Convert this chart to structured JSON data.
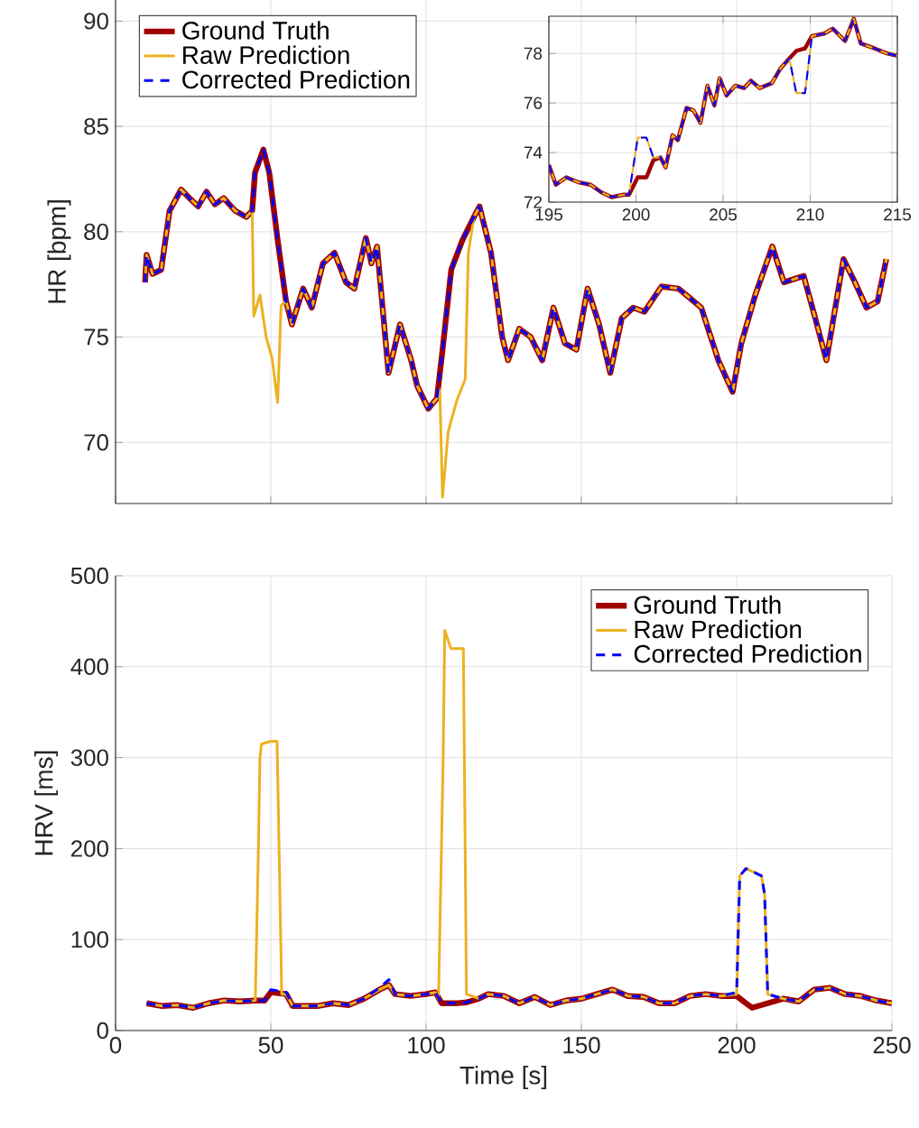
{
  "chart_data": [
    {
      "type": "line",
      "ylabel": "HR [bpm]",
      "xlim": [
        0,
        250
      ],
      "ylim": [
        67.1,
        91
      ],
      "xticks": [
        0,
        50,
        100,
        150,
        200,
        250
      ],
      "yticks": [
        70,
        75,
        80,
        85,
        90
      ],
      "tick_labels": "y",
      "grid": true,
      "legend": "top left",
      "x": [
        9.5,
        10,
        11.9,
        14.7,
        17.4,
        21.1,
        23.8,
        26.6,
        29.3,
        32,
        34.8,
        38.5,
        42.1,
        44,
        44.9,
        47.6,
        49.5,
        52.2,
        54.9,
        56.8,
        60.4,
        63.2,
        66.8,
        70.5,
        74.2,
        76.9,
        80.6,
        82.4,
        84.2,
        87.9,
        91.6,
        95.2,
        97.1,
        100.7,
        103.5,
        105.3,
        108.1,
        111.7,
        115.4,
        117.2,
        120.9,
        124.5,
        126.4,
        130,
        133.7,
        137.4,
        141,
        144.7,
        148.4,
        152,
        155.7,
        159.3,
        163,
        166.7,
        170.3,
        175.8,
        181.3,
        188.6,
        194.1,
        198.7,
        201.5,
        206,
        211.5,
        215.2,
        221.6,
        225.3,
        228.9,
        234.4,
        238.1,
        241.8,
        245.4,
        248.2
      ],
      "series": [
        {
          "name": "Ground Truth",
          "color": "#a00000",
          "line_style": "solid",
          "values": [
            77.6,
            78.9,
            78.0,
            78.2,
            81.0,
            82.0,
            81.6,
            81.2,
            81.9,
            81.3,
            81.6,
            81.0,
            80.7,
            81.0,
            82.8,
            83.9,
            82.8,
            79.6,
            76.7,
            75.6,
            77.3,
            76.4,
            78.5,
            79.0,
            77.6,
            77.3,
            79.7,
            78.5,
            79.3,
            73.3,
            75.6,
            73.9,
            72.7,
            71.6,
            72.1,
            74.4,
            78.2,
            79.6,
            80.7,
            81.2,
            79.0,
            75.0,
            73.9,
            75.4,
            75.0,
            73.9,
            76.4,
            74.7,
            74.4,
            77.3,
            75.6,
            73.3,
            75.9,
            76.4,
            76.2,
            77.4,
            77.3,
            76.4,
            73.9,
            72.4,
            74.7,
            77.0,
            79.3,
            77.6,
            77.9,
            75.9,
            73.9,
            78.7,
            77.6,
            76.4,
            76.7,
            78.7
          ]
        },
        {
          "name": "Raw Prediction",
          "color": "#edb120",
          "line_style": "solid",
          "x": [
            9.5,
            10,
            11.9,
            14.7,
            17.4,
            21.1,
            23.8,
            26.6,
            29.3,
            32,
            34.8,
            38.5,
            42.1,
            44,
            44.5,
            46.5,
            48.5,
            50.4,
            52.2,
            53.3,
            54.9,
            56.8,
            60.4,
            63.2,
            66.8,
            70.5,
            74.2,
            76.9,
            80.6,
            82.4,
            84.2,
            87.9,
            91.6,
            95.2,
            97.1,
            100.7,
            103.5,
            104.4,
            105.3,
            107.1,
            109.9,
            112.6,
            113.6,
            115.4,
            117.2,
            120.9,
            124.5,
            126.4,
            130,
            133.7,
            137.4,
            141,
            144.7,
            148.4,
            152,
            155.7,
            159.3,
            163,
            166.7,
            170.3,
            175.8,
            181.3,
            188.6,
            194.1,
            198.7,
            201.5,
            206,
            211.5,
            215.2,
            221.6,
            225.3,
            228.9,
            234.4,
            238.1,
            241.8,
            245.4,
            248.2
          ],
          "values": [
            77.6,
            78.9,
            78.0,
            78.2,
            81.0,
            82.0,
            81.6,
            81.2,
            81.9,
            81.3,
            81.6,
            81.0,
            80.7,
            81.0,
            76.0,
            77.0,
            75.0,
            74.0,
            71.9,
            76.5,
            76.7,
            75.6,
            77.3,
            76.4,
            78.5,
            79.0,
            77.6,
            77.3,
            79.7,
            78.5,
            79.3,
            73.3,
            75.6,
            73.9,
            72.7,
            71.6,
            72.1,
            72.5,
            67.4,
            70.5,
            72.0,
            73.0,
            79.0,
            80.7,
            81.2,
            79.0,
            75.0,
            73.9,
            75.4,
            75.0,
            73.9,
            76.4,
            74.7,
            74.4,
            77.3,
            75.6,
            73.3,
            75.9,
            76.4,
            76.2,
            77.4,
            77.3,
            76.4,
            73.9,
            72.4,
            74.7,
            77.0,
            79.3,
            77.6,
            77.9,
            75.9,
            73.9,
            78.7,
            77.6,
            76.4,
            76.7,
            78.7
          ]
        },
        {
          "name": "Corrected Prediction",
          "color": "#0000ff",
          "line_style": "dashed",
          "values": [
            77.6,
            78.9,
            78.0,
            78.2,
            81.0,
            82.0,
            81.6,
            81.2,
            81.9,
            81.3,
            81.6,
            81.0,
            80.7,
            81.0,
            82.8,
            83.9,
            82.8,
            79.6,
            76.7,
            75.6,
            77.3,
            76.4,
            78.5,
            79.0,
            77.6,
            77.3,
            79.7,
            78.5,
            79.3,
            73.3,
            75.6,
            73.9,
            72.7,
            71.6,
            72.1,
            74.4,
            78.2,
            79.6,
            80.7,
            81.2,
            79.0,
            75.0,
            73.9,
            75.4,
            75.0,
            73.9,
            76.4,
            74.7,
            74.4,
            77.3,
            75.6,
            73.3,
            75.9,
            76.4,
            76.2,
            77.4,
            77.3,
            76.4,
            73.9,
            72.4,
            74.7,
            77.0,
            79.3,
            77.6,
            77.9,
            75.9,
            73.9,
            78.7,
            77.6,
            76.4,
            76.7,
            78.7
          ]
        }
      ]
    },
    {
      "type": "line",
      "xlim": [
        195,
        215
      ],
      "ylim": [
        72,
        79.5
      ],
      "xticks": [
        195,
        200,
        205,
        210,
        215
      ],
      "yticks": [
        72,
        74,
        76,
        78
      ],
      "grid": true,
      "x": [
        195,
        195.4,
        196,
        196.7,
        197.4,
        198,
        198.6,
        199.3,
        199.6,
        200.1,
        200.6,
        201,
        201.4,
        201.7,
        202.1,
        202.4,
        202.9,
        203.3,
        203.7,
        204.1,
        204.5,
        204.8,
        205.2,
        205.7,
        206.2,
        206.6,
        207.1,
        207.8,
        208.3,
        208.8,
        209.2,
        209.7,
        210.1,
        210.8,
        211.3,
        212,
        212.5,
        212.9,
        213.7,
        214.4,
        215
      ],
      "series": [
        {
          "color": "#a00000",
          "line_style": "solid",
          "values": [
            73.5,
            72.7,
            73.0,
            72.8,
            72.7,
            72.4,
            72.2,
            72.3,
            72.3,
            73.0,
            73.0,
            73.7,
            73.8,
            73.4,
            74.7,
            74.5,
            75.8,
            75.7,
            75.2,
            76.7,
            75.9,
            77.0,
            76.3,
            76.7,
            76.6,
            76.9,
            76.6,
            76.8,
            77.4,
            77.8,
            78.1,
            78.2,
            78.7,
            78.8,
            79.0,
            78.5,
            79.4,
            78.4,
            78.2,
            78.0,
            77.9
          ]
        },
        {
          "color": "#edb120",
          "line_style": "solid",
          "values": [
            73.5,
            72.7,
            73.0,
            72.8,
            72.7,
            72.4,
            72.2,
            72.3,
            72.3,
            74.6,
            74.6,
            73.8,
            73.8,
            73.4,
            74.7,
            74.5,
            75.8,
            75.7,
            75.2,
            76.7,
            75.9,
            77.0,
            76.3,
            76.7,
            76.6,
            76.9,
            76.6,
            76.8,
            77.4,
            77.8,
            76.4,
            76.4,
            78.7,
            78.8,
            79.0,
            78.5,
            79.4,
            78.4,
            78.2,
            78.0,
            77.9
          ]
        },
        {
          "color": "#0000ff",
          "line_style": "dashed",
          "values": [
            73.5,
            72.7,
            73.0,
            72.8,
            72.7,
            72.4,
            72.2,
            72.3,
            72.3,
            74.6,
            74.6,
            73.8,
            73.8,
            73.4,
            74.7,
            74.5,
            75.8,
            75.7,
            75.2,
            76.7,
            75.9,
            77.0,
            76.3,
            76.7,
            76.6,
            76.9,
            76.6,
            76.8,
            77.4,
            77.8,
            76.4,
            76.4,
            78.7,
            78.8,
            79.0,
            78.5,
            79.4,
            78.4,
            78.2,
            78.0,
            77.9
          ]
        }
      ]
    },
    {
      "type": "line",
      "xlabel": "Time [s]",
      "ylabel": "HRV [ms]",
      "xlim": [
        0,
        250
      ],
      "ylim": [
        0,
        500
      ],
      "xticks": [
        0,
        50,
        100,
        150,
        200,
        250
      ],
      "yticks": [
        0,
        100,
        200,
        300,
        400,
        500
      ],
      "grid": true,
      "legend": "top right",
      "x": [
        10,
        15,
        20,
        25,
        30,
        35,
        40,
        45,
        48,
        50,
        55,
        57,
        65,
        70,
        75,
        80,
        85,
        88,
        90,
        95,
        100,
        103,
        105,
        110,
        113,
        117,
        120,
        125,
        130,
        135,
        140,
        145,
        150,
        155,
        160,
        165,
        170,
        175,
        180,
        185,
        190,
        195,
        200,
        203,
        205,
        210,
        215,
        220,
        225,
        230,
        235,
        240,
        245,
        250
      ],
      "series": [
        {
          "name": "Ground Truth",
          "color": "#a00000",
          "line_style": "solid",
          "values": [
            30,
            27,
            28,
            25,
            30,
            33,
            32,
            33,
            33,
            42,
            40,
            27,
            27,
            30,
            28,
            35,
            45,
            50,
            40,
            38,
            40,
            42,
            30,
            30,
            31,
            35,
            40,
            38,
            30,
            37,
            28,
            33,
            35,
            40,
            45,
            38,
            37,
            30,
            30,
            38,
            40,
            38,
            38,
            30,
            25,
            30,
            35,
            32,
            45,
            47,
            40,
            38,
            33,
            30
          ]
        },
        {
          "name": "Raw Prediction",
          "color": "#edb120",
          "line_style": "solid",
          "x": [
            10,
            15,
            20,
            25,
            30,
            35,
            40,
            45,
            46,
            46.5,
            47,
            50,
            52,
            52.5,
            53.5,
            55,
            57,
            65,
            70,
            75,
            80,
            85,
            88,
            90,
            95,
            100,
            103,
            104,
            105.5,
            106,
            108,
            112,
            113,
            117,
            120,
            125,
            130,
            135,
            140,
            145,
            150,
            155,
            160,
            165,
            170,
            175,
            180,
            185,
            190,
            195,
            200,
            201,
            203,
            205,
            208,
            209,
            210,
            215,
            220,
            225,
            230,
            235,
            240,
            245,
            250
          ],
          "values": [
            30,
            27,
            28,
            25,
            30,
            33,
            32,
            33,
            200,
            300,
            315,
            318,
            318,
            230,
            40,
            40,
            27,
            27,
            30,
            28,
            35,
            45,
            50,
            40,
            38,
            40,
            42,
            35,
            300,
            440,
            420,
            420,
            40,
            35,
            40,
            38,
            30,
            37,
            28,
            33,
            35,
            40,
            45,
            38,
            37,
            30,
            30,
            38,
            40,
            38,
            40,
            170,
            178,
            175,
            170,
            150,
            40,
            35,
            32,
            45,
            47,
            40,
            38,
            33,
            30
          ]
        },
        {
          "name": "Corrected Prediction",
          "color": "#0000ff",
          "line_style": "dashed",
          "x": [
            10,
            15,
            20,
            25,
            30,
            35,
            40,
            45,
            48,
            50,
            55,
            57,
            65,
            70,
            75,
            80,
            85,
            88,
            90,
            95,
            100,
            103,
            105,
            110,
            113,
            117,
            120,
            125,
            130,
            135,
            140,
            145,
            150,
            155,
            160,
            165,
            170,
            175,
            180,
            185,
            190,
            195,
            200,
            201,
            203,
            205,
            208,
            209,
            210,
            215,
            220,
            225,
            230,
            235,
            240,
            245,
            250
          ],
          "values": [
            30,
            27,
            28,
            25,
            30,
            33,
            32,
            33,
            33,
            45,
            42,
            27,
            27,
            30,
            28,
            35,
            47,
            56,
            40,
            38,
            40,
            42,
            30,
            30,
            31,
            35,
            40,
            38,
            30,
            37,
            28,
            33,
            35,
            40,
            45,
            38,
            37,
            30,
            30,
            38,
            40,
            38,
            42,
            170,
            178,
            175,
            170,
            150,
            40,
            35,
            32,
            45,
            47,
            40,
            38,
            33,
            30
          ]
        }
      ]
    }
  ]
}
